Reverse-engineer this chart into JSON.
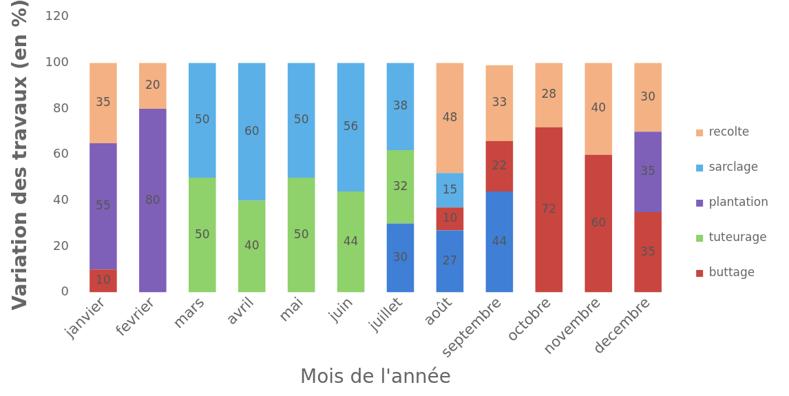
{
  "chart_data": {
    "type": "bar",
    "stacked": true,
    "data_labels": true,
    "legend": "right",
    "grid": false,
    "xlabel": "Mois de l'année",
    "ylabel": "Variation des travaux (en %)",
    "categories": [
      "janvier",
      "fevrier",
      "mars",
      "avril",
      "mai",
      "juin",
      "juillet",
      "août",
      "septembre",
      "octobre",
      "novembre",
      "decembre"
    ],
    "ylim": [
      0,
      120
    ],
    "yticks": [
      0,
      20,
      40,
      60,
      80,
      100,
      120
    ],
    "series": [
      {
        "color": "#3f7fd6",
        "values": [
          null,
          null,
          null,
          null,
          null,
          null,
          30,
          27,
          44,
          null,
          null,
          null
        ]
      },
      {
        "name": "buttage",
        "color": "#c9453f",
        "values": [
          10,
          null,
          null,
          null,
          null,
          null,
          null,
          10,
          22,
          72,
          60,
          35
        ]
      },
      {
        "name": "tuteurage",
        "color": "#8fd16a",
        "values": [
          null,
          null,
          50,
          40,
          50,
          44,
          32,
          null,
          null,
          null,
          null,
          null
        ]
      },
      {
        "name": "plantation",
        "color": "#7e60b8",
        "values": [
          55,
          80,
          null,
          null,
          null,
          null,
          null,
          null,
          null,
          null,
          null,
          35
        ]
      },
      {
        "name": "sarclage",
        "color": "#5bb0e8",
        "values": [
          null,
          null,
          50,
          60,
          50,
          56,
          38,
          15,
          null,
          null,
          null,
          null
        ]
      },
      {
        "name": "recolte",
        "color": "#f4b183",
        "values": [
          35,
          20,
          null,
          null,
          null,
          null,
          null,
          48,
          33,
          28,
          40,
          30
        ]
      }
    ]
  }
}
